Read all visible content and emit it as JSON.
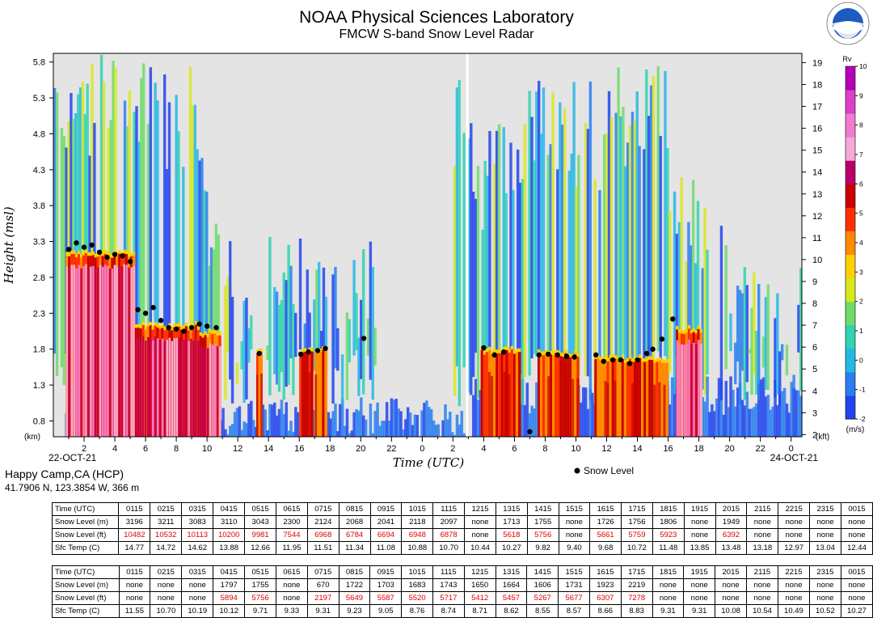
{
  "header": {
    "title": "NOAA Physical Sciences Laboratory",
    "subtitle": "FMCW S-band Snow Level Radar",
    "logo_text": "NOAA"
  },
  "station": {
    "name": "Happy Camp,CA (HCP)",
    "coords": "41.7906 N, 123.3854 W, 366 m"
  },
  "legend": {
    "snow_level": "Snow Level"
  },
  "colors": {
    "background": "#e4e4e4",
    "colorbar": [
      "#2244ee",
      "#2a7ff0",
      "#27b7e6",
      "#2ed3b0",
      "#6fdc6a",
      "#d8e81c",
      "#ffd000",
      "#ff8a00",
      "#ff3000",
      "#c80000",
      "#b8006a",
      "#f6a8d8",
      "#f27ad0",
      "#dc40c8",
      "#b400b8"
    ]
  },
  "chart_data": {
    "type": "heatmap",
    "xlabel": "Time (UTC)",
    "ylabel": "Height (msl)",
    "y_unit_left": "(km)",
    "y_unit_right": "(kft)",
    "date_start": "22-OCT-21",
    "date_end": "24-OCT-21",
    "x_ticks": [
      "2",
      "4",
      "6",
      "8",
      "10",
      "12",
      "14",
      "16",
      "18",
      "20",
      "22",
      "0",
      "2",
      "4",
      "6",
      "8",
      "10",
      "12",
      "14",
      "16",
      "18",
      "20",
      "22",
      "0"
    ],
    "y_ticks_km": [
      "0.8",
      "1.3",
      "1.8",
      "2.3",
      "2.8",
      "3.3",
      "3.8",
      "4.3",
      "4.8",
      "5.3",
      "5.8"
    ],
    "y_ticks_kft": [
      "2",
      "3",
      "4",
      "5",
      "6",
      "7",
      "8",
      "9",
      "10",
      "11",
      "12",
      "13",
      "14",
      "15",
      "16",
      "17",
      "18",
      "19"
    ],
    "colorbar": {
      "label": "Rv",
      "unit": "(m/s)",
      "ticks": [
        "-2",
        "-1",
        "0",
        "1",
        "2",
        "3",
        "4",
        "5",
        "6",
        "7",
        "8",
        "9",
        "10"
      ]
    },
    "snow_level_points": [
      {
        "t": 1.0,
        "h": 3.19
      },
      {
        "t": 1.5,
        "h": 3.28
      },
      {
        "t": 2.0,
        "h": 3.22
      },
      {
        "t": 2.5,
        "h": 3.25
      },
      {
        "t": 3.0,
        "h": 3.15
      },
      {
        "t": 3.5,
        "h": 3.08
      },
      {
        "t": 4.0,
        "h": 3.12
      },
      {
        "t": 4.5,
        "h": 3.1
      },
      {
        "t": 5.0,
        "h": 3.02
      },
      {
        "t": 5.5,
        "h": 2.35
      },
      {
        "t": 6.0,
        "h": 2.3
      },
      {
        "t": 6.5,
        "h": 2.38
      },
      {
        "t": 7.0,
        "h": 2.2
      },
      {
        "t": 7.5,
        "h": 2.1
      },
      {
        "t": 8.0,
        "h": 2.08
      },
      {
        "t": 8.5,
        "h": 2.05
      },
      {
        "t": 9.0,
        "h": 2.1
      },
      {
        "t": 9.5,
        "h": 2.15
      },
      {
        "t": 10.0,
        "h": 2.12
      },
      {
        "t": 10.6,
        "h": 2.1
      },
      {
        "t": 13.4,
        "h": 1.74
      },
      {
        "t": 16.1,
        "h": 1.73
      },
      {
        "t": 16.6,
        "h": 1.76
      },
      {
        "t": 17.2,
        "h": 1.78
      },
      {
        "t": 17.7,
        "h": 1.81
      },
      {
        "t": 20.2,
        "h": 1.95
      },
      {
        "t": 28.0,
        "h": 1.82
      },
      {
        "t": 28.7,
        "h": 1.72
      },
      {
        "t": 29.3,
        "h": 1.76
      },
      {
        "t": 31.0,
        "h": 0.65
      },
      {
        "t": 31.6,
        "h": 1.72
      },
      {
        "t": 32.2,
        "h": 1.73
      },
      {
        "t": 32.8,
        "h": 1.72
      },
      {
        "t": 33.4,
        "h": 1.7
      },
      {
        "t": 33.9,
        "h": 1.69
      },
      {
        "t": 35.3,
        "h": 1.72
      },
      {
        "t": 35.8,
        "h": 1.63
      },
      {
        "t": 36.4,
        "h": 1.65
      },
      {
        "t": 36.9,
        "h": 1.65
      },
      {
        "t": 37.5,
        "h": 1.6
      },
      {
        "t": 38.0,
        "h": 1.65
      },
      {
        "t": 38.6,
        "h": 1.74
      },
      {
        "t": 39.0,
        "h": 1.8
      },
      {
        "t": 39.6,
        "h": 1.94
      },
      {
        "t": 40.3,
        "h": 2.22
      }
    ],
    "precip_segments": [
      {
        "t0": 0.8,
        "t1": 5.3,
        "top": 3.1
      },
      {
        "t0": 5.3,
        "t1": 9.5,
        "top": 2.1
      },
      {
        "t0": 9.5,
        "t1": 10.9,
        "top": 2.0
      },
      {
        "t0": 13.2,
        "t1": 13.6,
        "top": 1.74
      },
      {
        "t0": 16.0,
        "t1": 16.9,
        "top": 1.74
      },
      {
        "t0": 17.0,
        "t1": 17.8,
        "top": 1.78
      },
      {
        "t0": 27.8,
        "t1": 30.4,
        "top": 1.76
      },
      {
        "t0": 31.5,
        "t1": 34.2,
        "top": 1.71
      },
      {
        "t0": 35.2,
        "t1": 40.0,
        "top": 1.64
      },
      {
        "t0": 40.5,
        "t1": 42.2,
        "top": 2.05
      }
    ]
  },
  "table1": {
    "rows": [
      {
        "label": "Time (UTC)",
        "cells": [
          "0115",
          "0215",
          "0315",
          "0415",
          "0515",
          "0615",
          "0715",
          "0815",
          "0915",
          "1015",
          "1115",
          "1215",
          "1315",
          "1415",
          "1515",
          "1615",
          "1715",
          "1815",
          "1915",
          "2015",
          "2115",
          "2215",
          "2315",
          "0015"
        ],
        "red": false
      },
      {
        "label": "Snow Level (m)",
        "cells": [
          "3196",
          "3211",
          "3083",
          "3110",
          "3043",
          "2300",
          "2124",
          "2068",
          "2041",
          "2118",
          "2097",
          "none",
          "1713",
          "1755",
          "none",
          "1726",
          "1756",
          "1806",
          "none",
          "1949",
          "none",
          "none",
          "none",
          "none"
        ],
        "red": false
      },
      {
        "label": "Snow Level (ft)",
        "cells": [
          "10482",
          "10532",
          "10113",
          "10200",
          "9981",
          "7544",
          "6968",
          "6784",
          "6694",
          "6948",
          "6878",
          "none",
          "5618",
          "5756",
          "none",
          "5661",
          "5759",
          "5923",
          "none",
          "6392",
          "none",
          "none",
          "none",
          "none"
        ],
        "red": true
      },
      {
        "label": "Sfc Temp (C)",
        "cells": [
          "14.77",
          "14.72",
          "14.62",
          "13.88",
          "12.66",
          "11.95",
          "11.51",
          "11.34",
          "11.08",
          "10.88",
          "10.70",
          "10.44",
          "10.27",
          "9.82",
          "9.40",
          "9.68",
          "10.72",
          "11.48",
          "13.85",
          "13.48",
          "13.18",
          "12.97",
          "13.04",
          "12.44"
        ],
        "red": false
      }
    ]
  },
  "table2": {
    "rows": [
      {
        "label": "Time (UTC)",
        "cells": [
          "0115",
          "0215",
          "0315",
          "0415",
          "0515",
          "0615",
          "0715",
          "0815",
          "0915",
          "1015",
          "1115",
          "1215",
          "1315",
          "1415",
          "1515",
          "1615",
          "1715",
          "1815",
          "1915",
          "2015",
          "2115",
          "2215",
          "2315",
          "0015"
        ],
        "red": false
      },
      {
        "label": "Snow Level (m)",
        "cells": [
          "none",
          "none",
          "none",
          "1797",
          "1755",
          "none",
          "670",
          "1722",
          "1703",
          "1683",
          "1743",
          "1650",
          "1664",
          "1606",
          "1731",
          "1923",
          "2219",
          "none",
          "none",
          "none",
          "none",
          "none",
          "none",
          "none"
        ],
        "red": false
      },
      {
        "label": "Snow Level (ft)",
        "cells": [
          "none",
          "none",
          "none",
          "5894",
          "5756",
          "none",
          "2197",
          "5649",
          "5587",
          "5520",
          "5717",
          "5412",
          "5457",
          "5267",
          "5677",
          "6307",
          "7278",
          "none",
          "none",
          "none",
          "none",
          "none",
          "none",
          "none"
        ],
        "red": true
      },
      {
        "label": "Sfc Temp (C)",
        "cells": [
          "11.55",
          "10.70",
          "10.19",
          "10.12",
          "9.71",
          "9.33",
          "9.31",
          "9.23",
          "9.05",
          "8.76",
          "8.74",
          "8.71",
          "8.62",
          "8.55",
          "8.57",
          "8.66",
          "8.83",
          "9.31",
          "9.31",
          "10.08",
          "10.54",
          "10.49",
          "10.52",
          "10.27"
        ],
        "red": false
      }
    ]
  }
}
